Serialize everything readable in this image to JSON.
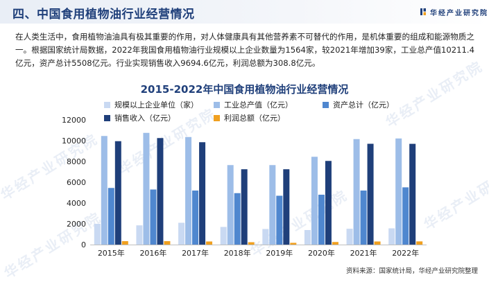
{
  "header": {
    "title": "四、中国食用植物油行业经营情况",
    "brand": "华经产业研究院",
    "logo_color": "#1f3f7a"
  },
  "intro": "在人类生活中，食用植物油油具有极其重要的作用，对人体健康具有其他营养素不可替代的作用，是机体重要的组成和能源物质之一。根据国家统计局数据，2022年我国食用植物油行业规模以上企业数量为1564家，较2021年增加39家，工业总产值10211.4亿元，资产总计5508亿元。行业实现销售收入9694.6亿元，利润总额为308.8亿元。",
  "watermark": "华经产业研究院",
  "source": "资料来源：国家统计局，华经产业研究院整理",
  "chart_data": {
    "type": "bar",
    "title": "2015-2022年中国食用植物油行业经营情况",
    "xlabel": "",
    "ylabel": "",
    "categories": [
      "2015年",
      "2016年",
      "2017年",
      "2018年",
      "2019年",
      "2020年",
      "2021年",
      "2022年"
    ],
    "ylim": [
      0,
      12000
    ],
    "yticks": [
      0,
      2000,
      4000,
      6000,
      8000,
      10000,
      12000
    ],
    "grid": false,
    "legend_position": "top",
    "series": [
      {
        "name": "规模以上企业单位（家）",
        "color": "#c9d9f2",
        "values": [
          2000,
          1850,
          2100,
          1700,
          1500,
          1400,
          1525,
          1564
        ]
      },
      {
        "name": "工业总产值（亿元）",
        "color": "#9dbde8",
        "values": [
          10450,
          10750,
          10350,
          7650,
          7650,
          8450,
          10150,
          10211.4
        ]
      },
      {
        "name": "资产总计（亿元）",
        "color": "#4f87cf",
        "values": [
          5450,
          5300,
          5200,
          4950,
          4700,
          4800,
          5200,
          5508
        ]
      },
      {
        "name": "销售收入（亿元）",
        "color": "#1f3f7a",
        "values": [
          9950,
          10250,
          9850,
          7250,
          7250,
          8050,
          9700,
          9694.6
        ]
      },
      {
        "name": "利润总额（亿元）",
        "color": "#f0a020",
        "values": [
          330,
          330,
          300,
          230,
          170,
          250,
          300,
          308.8
        ]
      }
    ]
  }
}
